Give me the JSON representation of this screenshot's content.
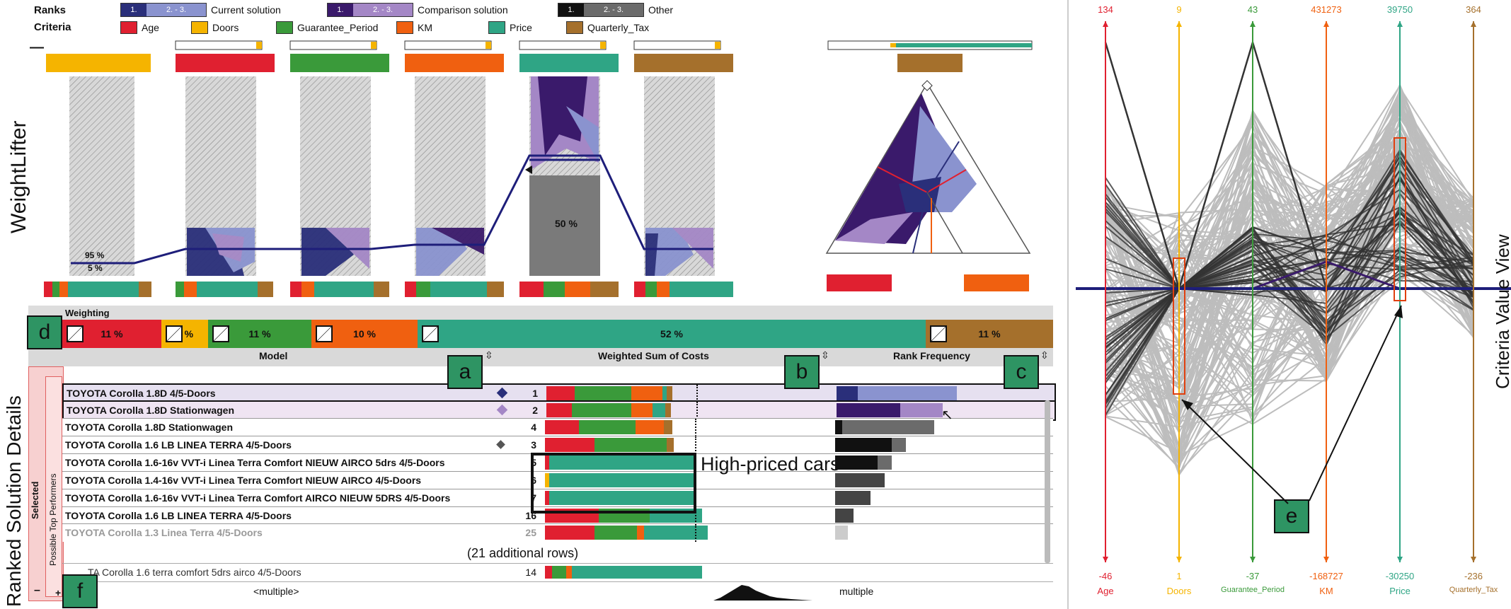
{
  "legend": {
    "ranks_label": "Ranks",
    "criteria_label": "Criteria",
    "rank_scale": [
      "1.",
      "2. - 3."
    ],
    "ranks": [
      {
        "name": "Current solution",
        "colors": [
          "#2a2f7a",
          "#8a93cf"
        ]
      },
      {
        "name": "Comparison solution",
        "colors": [
          "#3a1a6b",
          "#a487c6"
        ]
      },
      {
        "name": "Other",
        "colors": [
          "#111111",
          "#6b6b6b"
        ]
      }
    ],
    "criteria": [
      {
        "name": "Age",
        "color": "#e02030"
      },
      {
        "name": "Doors",
        "color": "#f5b400"
      },
      {
        "name": "Guarantee_Period",
        "color": "#3a9a3a"
      },
      {
        "name": "KM",
        "color": "#f06010"
      },
      {
        "name": "Price",
        "color": "#2fa585"
      },
      {
        "name": "Quarterly_Tax",
        "color": "#a5702c"
      }
    ]
  },
  "weightlifter": {
    "title": "WeightLifter",
    "collapse_label": "—",
    "doors_labels": [
      "95 %",
      "5 %"
    ],
    "price_label": "50 %"
  },
  "ranked": {
    "title": "Ranked Solution Details",
    "weighting_label": "Weighting",
    "weights": [
      {
        "criterion": "Age",
        "pct": "11 %",
        "color": "#e02030"
      },
      {
        "criterion": "Doors",
        "pct": "5 %",
        "color": "#f5b400"
      },
      {
        "criterion": "Guarantee_Period",
        "pct": "11 %",
        "color": "#3a9a3a"
      },
      {
        "criterion": "KM",
        "pct": "10 %",
        "color": "#f06010"
      },
      {
        "criterion": "Price",
        "pct": "52 %",
        "color": "#2fa585"
      },
      {
        "criterion": "Quarterly_Tax",
        "pct": "11 %",
        "color": "#a5702c"
      }
    ],
    "columns": {
      "model": "Model",
      "weighted": "Weighted Sum of Costs",
      "rank_freq": "Rank Frequency"
    },
    "side_labels": {
      "selected": "Selected",
      "top": "Possible Top Performers"
    },
    "rows": [
      {
        "model": "TOYOTA Corolla 1.8D 4/5-Doors",
        "rank": "1",
        "marker": "current"
      },
      {
        "model": "TOYOTA Corolla 1.8D Stationwagen",
        "rank": "2",
        "marker": "comparison"
      },
      {
        "model": "TOYOTA Corolla 1.8D Stationwagen",
        "rank": "4",
        "marker": ""
      },
      {
        "model": "TOYOTA Corolla 1.6 LB LINEA TERRA 4/5-Doors",
        "rank": "3",
        "marker": "other"
      },
      {
        "model": "TOYOTA Corolla 1.6-16v VVT-i Linea Terra Comfort NIEUW AIRCO 5drs 4/5-Doors",
        "rank": "5",
        "marker": ""
      },
      {
        "model": " TOYOTA Corolla 1.4-16v VVT-i Linea Terra Comfort NIEUW AIRCO 4/5-Doors",
        "rank": "6",
        "marker": ""
      },
      {
        "model": "TOYOTA Corolla 1.6-16v VVT-i Linea Terra Comfort AIRCO NIEUW 5DRS 4/5-Doors",
        "rank": "7",
        "marker": ""
      },
      {
        "model": "TOYOTA Corolla 1.6 LB LINEA TERRA 4/5-Doors",
        "rank": "16",
        "marker": ""
      },
      {
        "model": "TOYOTA Corolla 1.3 Linea Terra 4/5-Doors",
        "rank": "25",
        "marker": ""
      }
    ],
    "additional_rows": "(21 additional rows)",
    "last_row": {
      "model": "TA Corolla 1.6 terra comfort 5drs airco 4/5-Doors",
      "rank": "14"
    },
    "multiple_label": "<multiple>",
    "multiple_right": "multiple",
    "annotation": "High-priced cars",
    "minus": "–",
    "plus": "+"
  },
  "callouts": [
    "a",
    "b",
    "c",
    "d",
    "e",
    "f"
  ],
  "criteria_view": {
    "title": "Criteria Value View",
    "axes": [
      {
        "name": "Age",
        "max": "134",
        "min": "-46",
        "color": "#e02030"
      },
      {
        "name": "Doors",
        "max": "9",
        "min": "1",
        "color": "#f5b400"
      },
      {
        "name": "Guarantee_Period",
        "max": "43",
        "min": "-37",
        "color": "#3a9a3a"
      },
      {
        "name": "KM",
        "max": "431273",
        "min": "-168727",
        "color": "#f06010"
      },
      {
        "name": "Price",
        "max": "39750",
        "min": "-30250",
        "color": "#2fa585"
      },
      {
        "name": "Quarterly_Tax",
        "max": "364",
        "min": "-236",
        "color": "#a5702c"
      }
    ]
  }
}
